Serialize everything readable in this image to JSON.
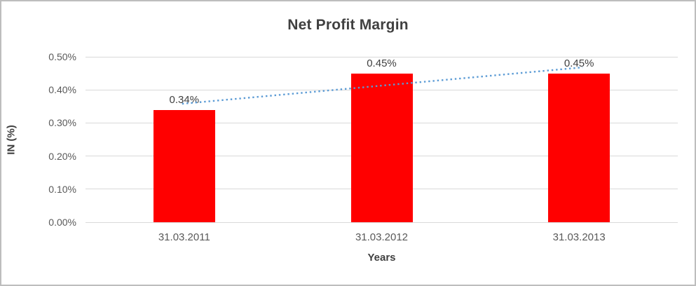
{
  "frame": {
    "background": "#ffffff",
    "border_color": "#bdbdbd"
  },
  "chart_data": {
    "type": "bar",
    "title": "Net Profit Margin",
    "categories": [
      "31.03.2011",
      "31.03.2012",
      "31.03.2013"
    ],
    "values": [
      0.34,
      0.45,
      0.45
    ],
    "value_labels": [
      "0.34%",
      "0.45%",
      "0.45%"
    ],
    "xlabel": "Years",
    "ylabel": "IN (%)",
    "ylim": [
      0,
      0.5
    ],
    "ytick_step": 0.1,
    "ytick_labels": [
      "0.00%",
      "0.10%",
      "0.20%",
      "0.30%",
      "0.40%",
      "0.50%"
    ],
    "grid": true,
    "legend": "none",
    "bar_color": "#ff0000",
    "trendline": {
      "style": "dotted",
      "shape": "linear",
      "color": "#5b9bd5",
      "start_value": 0.358,
      "end_value": 0.468
    },
    "colors": {
      "title_text": "#404040",
      "axis_text": "#595959",
      "axis_title_text": "#404040",
      "gridline": "#d9d9d9"
    }
  }
}
